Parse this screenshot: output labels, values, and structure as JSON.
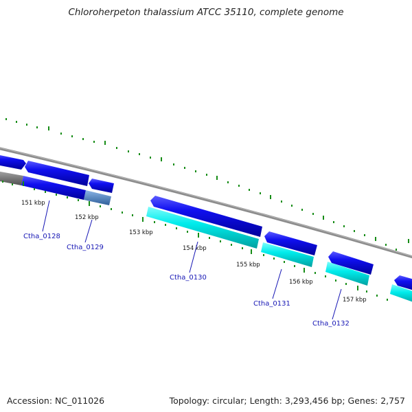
{
  "title": "Chloroherpeton thalassium ATCC 35110, complete genome",
  "footer": {
    "accession": "Accession: NC_011026",
    "topology": "Topology: circular; Length: 3,293,456 bp; Genes: 2,757"
  },
  "kbp_labels": [
    "151 kbp",
    "152 kbp",
    "153 kbp",
    "154 kbp",
    "155 kbp",
    "156 kbp",
    "157 kbp"
  ],
  "genes": [
    {
      "name": "Ctha_0128"
    },
    {
      "name": "Ctha_0129"
    },
    {
      "name": "Ctha_0130"
    },
    {
      "name": "Ctha_0131"
    },
    {
      "name": "Ctha_0132"
    }
  ],
  "colors": {
    "backbone": "#8c8c8c",
    "tick": "#168c16",
    "cds_strand": "#0000e6",
    "rna_strand": "#00e6e6",
    "gene_label": "#1414b4"
  }
}
